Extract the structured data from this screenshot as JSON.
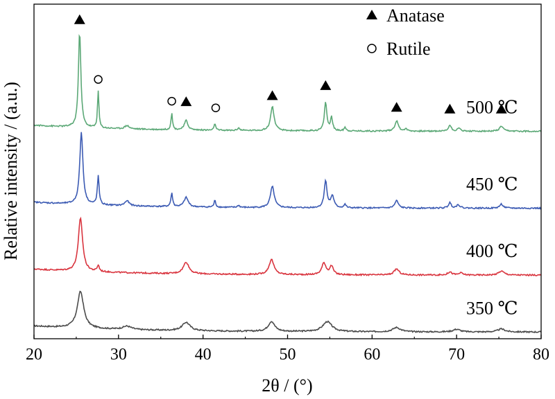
{
  "chart_data": {
    "type": "line",
    "xlabel": "2θ / (°)",
    "ylabel": "Relative intensity / (a.u.)",
    "xlim": [
      20,
      80
    ],
    "ylim": [
      0,
      1
    ],
    "xticks": [
      20,
      30,
      40,
      50,
      60,
      70,
      80
    ],
    "grid": false,
    "legend_position": "top-right",
    "legend": [
      {
        "marker": "filled-triangle",
        "label": "Anatase"
      },
      {
        "marker": "open-circle",
        "label": "Rutile"
      }
    ],
    "series": [
      {
        "name": "350 ℃",
        "color": "#4a4a4a",
        "baseline": 0.02,
        "peaks": [
          [
            25.5,
            0.11,
            0.9
          ],
          [
            31.0,
            0.01,
            1.2
          ],
          [
            38.0,
            0.025,
            1.1
          ],
          [
            48.1,
            0.03,
            0.9
          ],
          [
            54.7,
            0.03,
            1.3
          ],
          [
            62.9,
            0.013,
            1.1
          ],
          [
            70.0,
            0.008,
            1.0
          ],
          [
            75.3,
            0.009,
            1.0
          ]
        ]
      },
      {
        "name": "400 ℃",
        "color": "#d9343e",
        "baseline": 0.19,
        "peaks": [
          [
            25.5,
            0.16,
            0.6
          ],
          [
            27.6,
            0.018,
            0.3
          ],
          [
            38.0,
            0.035,
            0.8
          ],
          [
            48.1,
            0.045,
            0.7
          ],
          [
            54.3,
            0.035,
            0.6
          ],
          [
            55.2,
            0.025,
            0.5
          ],
          [
            62.9,
            0.018,
            0.7
          ],
          [
            69.2,
            0.009,
            0.6
          ],
          [
            70.5,
            0.006,
            0.6
          ],
          [
            75.3,
            0.012,
            0.8
          ]
        ]
      },
      {
        "name": "450 ℃",
        "color": "#3b5ab3",
        "baseline": 0.39,
        "peaks": [
          [
            25.6,
            0.215,
            0.45
          ],
          [
            27.6,
            0.085,
            0.25
          ],
          [
            31.0,
            0.015,
            0.6
          ],
          [
            36.3,
            0.04,
            0.25
          ],
          [
            38.0,
            0.028,
            0.6
          ],
          [
            41.4,
            0.02,
            0.25
          ],
          [
            44.2,
            0.006,
            0.3
          ],
          [
            48.2,
            0.063,
            0.55
          ],
          [
            54.5,
            0.08,
            0.4
          ],
          [
            55.3,
            0.035,
            0.45
          ],
          [
            56.8,
            0.01,
            0.3
          ],
          [
            62.9,
            0.022,
            0.5
          ],
          [
            69.2,
            0.016,
            0.4
          ],
          [
            70.2,
            0.01,
            0.5
          ],
          [
            75.3,
            0.012,
            0.5
          ]
        ]
      },
      {
        "name": "500 ℃",
        "color": "#5ba876",
        "baseline": 0.62,
        "peaks": [
          [
            25.4,
            0.285,
            0.35
          ],
          [
            27.6,
            0.11,
            0.2
          ],
          [
            31.0,
            0.01,
            0.6
          ],
          [
            36.3,
            0.052,
            0.2
          ],
          [
            38.0,
            0.028,
            0.5
          ],
          [
            41.4,
            0.022,
            0.2
          ],
          [
            44.2,
            0.008,
            0.3
          ],
          [
            48.2,
            0.072,
            0.5
          ],
          [
            54.5,
            0.085,
            0.35
          ],
          [
            55.2,
            0.04,
            0.3
          ],
          [
            56.8,
            0.012,
            0.25
          ],
          [
            62.9,
            0.03,
            0.5
          ],
          [
            64.0,
            0.006,
            0.4
          ],
          [
            69.2,
            0.018,
            0.4
          ],
          [
            70.3,
            0.008,
            0.5
          ],
          [
            75.3,
            0.015,
            0.5
          ]
        ]
      }
    ],
    "markers": [
      {
        "type": "anatase",
        "x": 25.4,
        "y": 0.955
      },
      {
        "type": "rutile",
        "x": 27.6,
        "y": 0.775
      },
      {
        "type": "rutile",
        "x": 36.3,
        "y": 0.71
      },
      {
        "type": "anatase",
        "x": 38.0,
        "y": 0.71
      },
      {
        "type": "rutile",
        "x": 41.5,
        "y": 0.69
      },
      {
        "type": "anatase",
        "x": 48.2,
        "y": 0.728
      },
      {
        "type": "anatase",
        "x": 54.5,
        "y": 0.758
      },
      {
        "type": "anatase",
        "x": 62.9,
        "y": 0.693
      },
      {
        "type": "anatase",
        "x": 69.2,
        "y": 0.688
      },
      {
        "type": "anatase",
        "x": 75.3,
        "y": 0.688
      }
    ]
  }
}
